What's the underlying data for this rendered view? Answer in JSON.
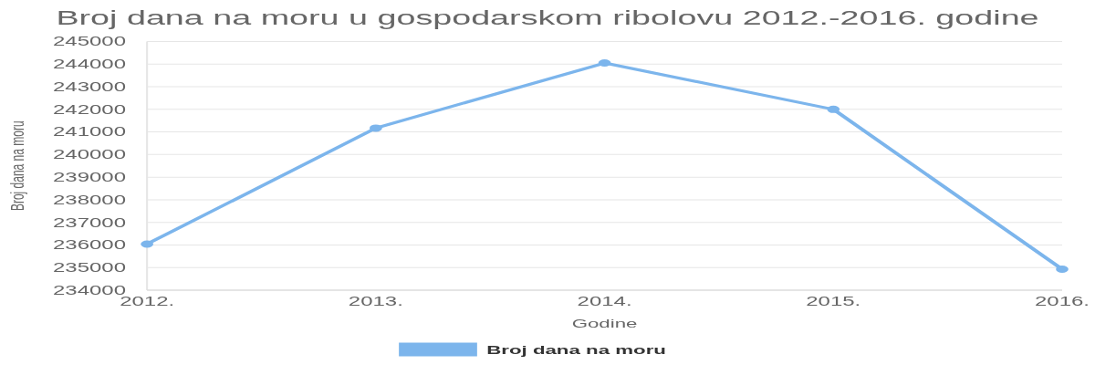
{
  "chart_data": {
    "type": "line",
    "title": "Broj dana na moru u gospodarskom ribolovu 2012.-2016. godine",
    "xlabel": "Godine",
    "ylabel": "Broj dana na moru",
    "categories": [
      "2012.",
      "2013.",
      "2014.",
      "2015.",
      "2016."
    ],
    "series": [
      {
        "name": "Broj dana na moru",
        "color": "#7cb5ec",
        "values": [
          236040,
          241170,
          244050,
          242000,
          234930
        ]
      }
    ],
    "ylim": [
      234000,
      245000
    ],
    "yticks": [
      234000,
      235000,
      236000,
      237000,
      238000,
      239000,
      240000,
      241000,
      242000,
      243000,
      244000,
      245000
    ],
    "grid": "y",
    "legend": "bottom",
    "marker": "circle",
    "line_style": "solid"
  }
}
